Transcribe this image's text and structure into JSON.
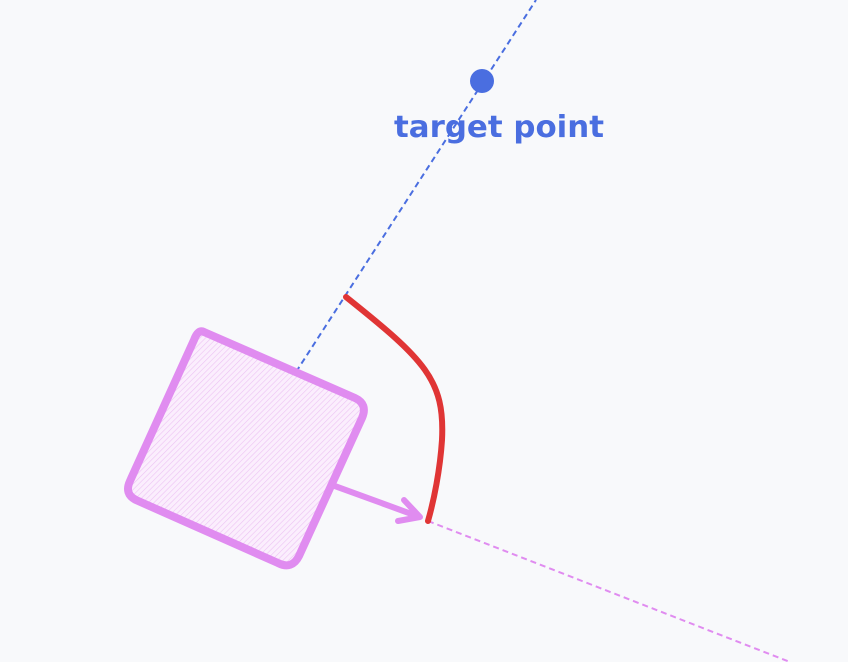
{
  "labels": {
    "target": "target point"
  },
  "colors": {
    "background": "#f8f9fb",
    "blue": "#4a6ee0",
    "magenta": "#e08cf0",
    "magenta_fill": "#f7dcfa",
    "red": "#e03535"
  },
  "icons": {
    "target_marker": "filled-dot",
    "heading_arrow": "arrow"
  }
}
